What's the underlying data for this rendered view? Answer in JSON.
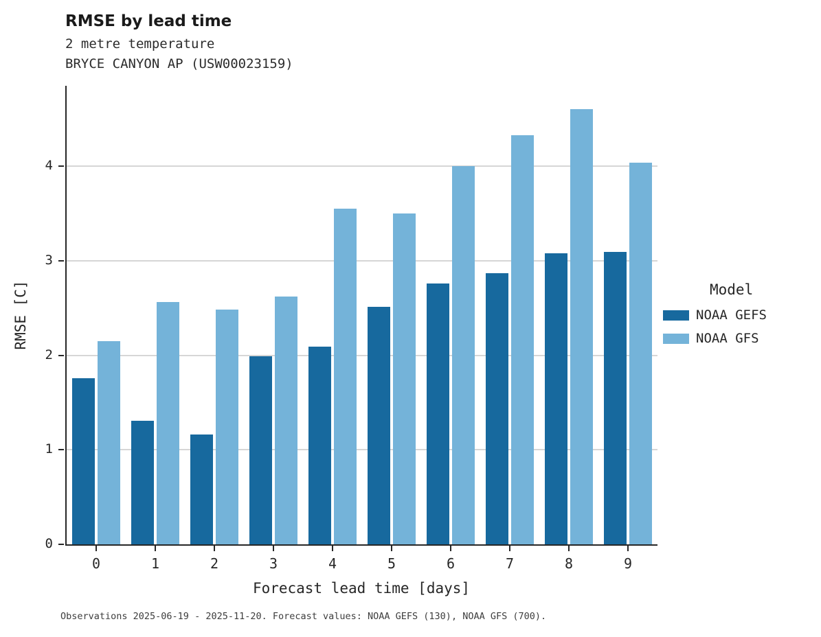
{
  "header": {
    "title": "RMSE by lead time",
    "subtitle1": "2 metre temperature",
    "subtitle2": "BRYCE CANYON AP (USW00023159)"
  },
  "legend": {
    "title": "Model",
    "entries": [
      {
        "label": "NOAA GEFS",
        "color": "#17699e"
      },
      {
        "label": "NOAA GFS",
        "color": "#74b3d9"
      }
    ]
  },
  "caption": "Observations 2025-06-19 - 2025-11-20. Forecast values: NOAA GEFS (130), NOAA GFS (700).",
  "chart_data": {
    "type": "bar",
    "title": "RMSE by lead time",
    "subtitle": "2 metre temperature — BRYCE CANYON AP (USW00023159)",
    "xlabel": "Forecast lead time [days]",
    "ylabel": "RMSE [C]",
    "categories": [
      "0",
      "1",
      "2",
      "3",
      "4",
      "5",
      "6",
      "7",
      "8",
      "9"
    ],
    "series": [
      {
        "name": "NOAA GEFS",
        "color": "#17699e",
        "values": [
          1.76,
          1.31,
          1.16,
          1.99,
          2.09,
          2.51,
          2.76,
          2.87,
          3.08,
          3.09
        ]
      },
      {
        "name": "NOAA GFS",
        "color": "#74b3d9",
        "values": [
          2.15,
          2.56,
          2.48,
          2.62,
          3.55,
          3.5,
          4.0,
          4.33,
          4.6,
          4.04
        ]
      }
    ],
    "ylim": [
      0,
      4.85
    ],
    "yticks": [
      0,
      1,
      2,
      3,
      4
    ],
    "grid": true,
    "legend_position": "right"
  }
}
